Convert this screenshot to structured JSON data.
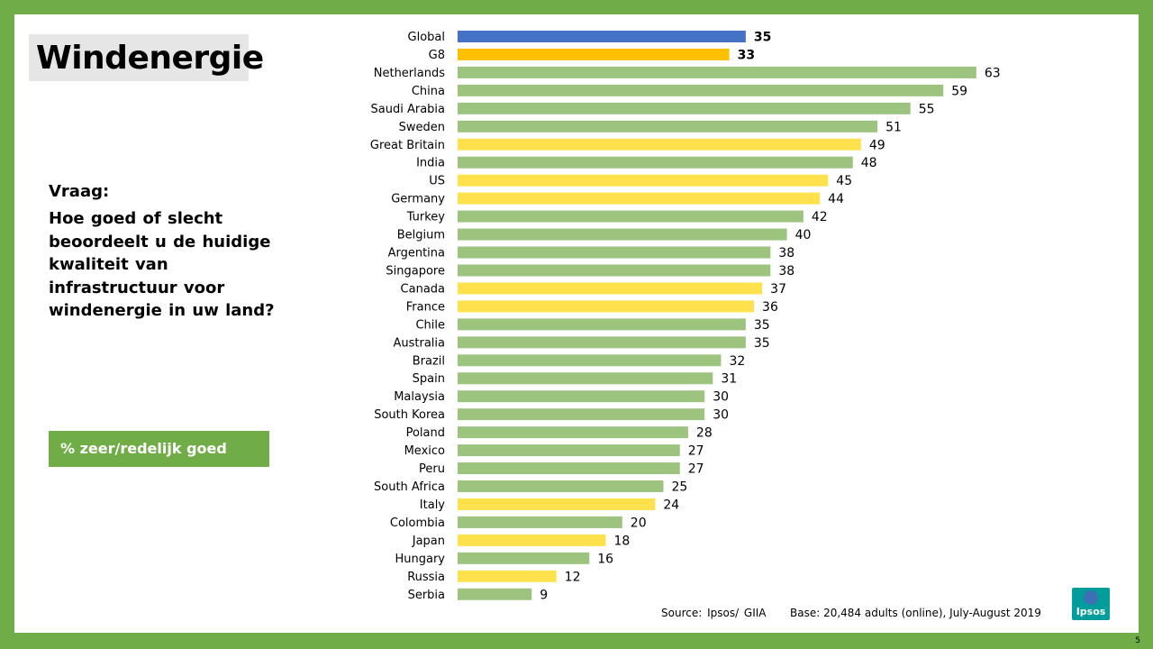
{
  "title": "Windenergie",
  "question": {
    "label": "Vraag:",
    "text": "Hoe goed of slecht beoordeelt u de huidige kwaliteit van infrastructuur voor windenergie in uw land?"
  },
  "measure_label": "% zeer/redelijk goed",
  "source": "Source:  Ipsos/ GIIA",
  "base": "Base: 20,484 adults (online),  July-August 2019",
  "logo_text": "Ipsos",
  "page_number": "5",
  "colors": {
    "global": "#4472c4",
    "g8_total": "#ffc000",
    "g8_country": "#ffe14d",
    "other": "#9dc47f",
    "frame": "#70ad47"
  },
  "chart_data": {
    "type": "bar",
    "orientation": "horizontal",
    "title": "",
    "xlabel": "",
    "ylabel": "",
    "xlim": [
      0,
      70
    ],
    "grid": false,
    "categories": [
      "Global",
      "G8",
      "Netherlands",
      "China",
      "Saudi Arabia",
      "Sweden",
      "Great Britain",
      "India",
      "US",
      "Germany",
      "Turkey",
      "Belgium",
      "Argentina",
      "Singapore",
      "Canada",
      "France",
      "Chile",
      "Australia",
      "Brazil",
      "Spain",
      "Malaysia",
      "South Korea",
      "Poland",
      "Mexico",
      "Peru",
      "South Africa",
      "Italy",
      "Colombia",
      "Japan",
      "Hungary",
      "Russia",
      "Serbia"
    ],
    "values": [
      35,
      33,
      63,
      59,
      55,
      51,
      49,
      48,
      45,
      44,
      42,
      40,
      38,
      38,
      37,
      36,
      35,
      35,
      32,
      31,
      30,
      30,
      28,
      27,
      27,
      25,
      24,
      20,
      18,
      16,
      12,
      9
    ],
    "groups": [
      "global",
      "g8_total",
      "other",
      "other",
      "other",
      "other",
      "g8_country",
      "other",
      "g8_country",
      "g8_country",
      "other",
      "other",
      "other",
      "other",
      "g8_country",
      "g8_country",
      "other",
      "other",
      "other",
      "other",
      "other",
      "other",
      "other",
      "other",
      "other",
      "other",
      "g8_country",
      "other",
      "g8_country",
      "other",
      "g8_country",
      "other"
    ],
    "bold_labels": [
      "Global",
      "G8"
    ]
  }
}
